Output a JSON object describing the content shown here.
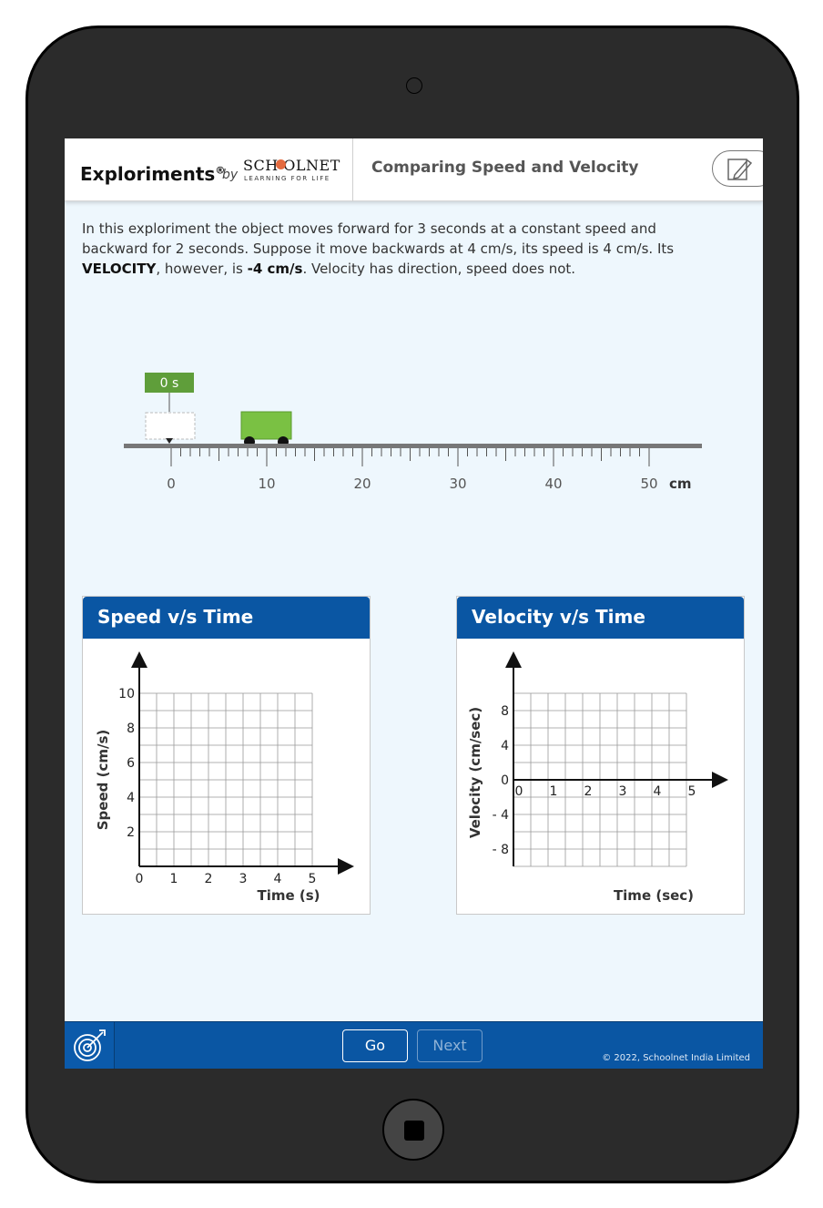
{
  "header": {
    "brand": "Exploriments",
    "brand_mark": "®",
    "by": "by",
    "logo_main": "SCH  OLNET",
    "logo_sub": "LEARNING FOR LIFE",
    "title": "Comparing Speed and Velocity",
    "edit_icon": "pencil-edit-icon"
  },
  "intro": {
    "part1": "In this exploriment the object moves forward for 3 seconds at a constant speed and backward for 2 seconds. Suppose it move backwards at 4 cm/s, its speed is 4 cm/s. Its ",
    "bold1": "VELOCITY",
    "part2": ", however, is ",
    "bold2": "-4 cm/s",
    "part3": ". Velocity has direction, speed does not."
  },
  "track": {
    "time_label": "0 s",
    "ticks": [
      "0",
      "10",
      "20",
      "30",
      "40",
      "50"
    ],
    "unit": "cm",
    "cart_color": "#7ac143"
  },
  "speed_panel": {
    "title": "Speed v/s Time",
    "y_label": "Speed (cm/s)",
    "x_label": "Time (s)",
    "y_ticks": [
      "10",
      "8",
      "6",
      "4",
      "2"
    ],
    "x_ticks": [
      "0",
      "1",
      "2",
      "3",
      "4",
      "5"
    ]
  },
  "velocity_panel": {
    "title": "Velocity v/s Time",
    "y_label": "Velocity (cm/sec)",
    "x_label": "Time (sec)",
    "y_ticks": [
      "8",
      "4",
      "0",
      "- 4",
      "- 8"
    ],
    "x_ticks": [
      "0",
      "1",
      "2",
      "3",
      "4",
      "5"
    ]
  },
  "footer": {
    "go": "Go",
    "next": "Next",
    "copyright": "© 2022, Schoolnet India Limited",
    "left_icon": "target-icon"
  }
}
